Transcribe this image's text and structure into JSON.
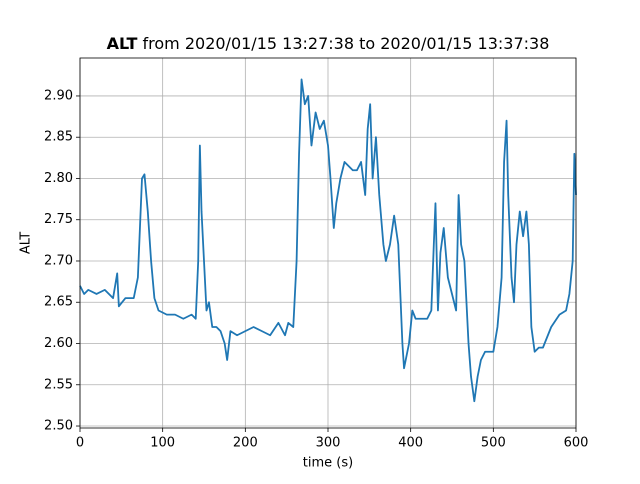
{
  "chart_data": {
    "type": "line",
    "title_bold": "ALT",
    "title": "from 2020/01/15 13:27:38 to 2020/01/15 13:37:38",
    "xlabel": "time (s)",
    "ylabel": "ALT",
    "xlim": [
      0,
      600
    ],
    "ylim": [
      2.4976,
      2.946
    ],
    "xticks": [
      0,
      100,
      200,
      300,
      400,
      500,
      600
    ],
    "yticks": [
      {
        "value": 2.5,
        "label": "2.50"
      },
      {
        "value": 2.55,
        "label": "2.55"
      },
      {
        "value": 2.6,
        "label": "2.60"
      },
      {
        "value": 2.65,
        "label": "2.65"
      },
      {
        "value": 2.7,
        "label": "2.70"
      },
      {
        "value": 2.75,
        "label": "2.75"
      },
      {
        "value": 2.8,
        "label": "2.80"
      },
      {
        "value": 2.85,
        "label": "2.85"
      },
      {
        "value": 2.9,
        "label": "2.90"
      }
    ],
    "grid": true,
    "series": [
      {
        "color": "#1f77b4",
        "x": [
          0,
          5,
          10,
          20,
          30,
          40,
          45,
          47,
          55,
          65,
          70,
          75,
          78,
          82,
          86,
          90,
          95,
          105,
          115,
          125,
          135,
          140,
          143,
          145,
          147,
          150,
          153,
          156,
          160,
          165,
          170,
          175,
          178,
          182,
          190,
          200,
          210,
          220,
          230,
          240,
          248,
          252,
          258,
          262,
          265,
          268,
          272,
          276,
          280,
          285,
          290,
          295,
          300,
          303,
          307,
          310,
          315,
          320,
          325,
          330,
          335,
          340,
          345,
          348,
          351,
          354,
          358,
          362,
          367,
          370,
          375,
          380,
          385,
          390,
          392,
          398,
          402,
          406,
          410,
          415,
          420,
          425,
          428,
          430,
          433,
          436,
          440,
          445,
          450,
          455,
          458,
          461,
          465,
          470,
          473,
          477,
          481,
          485,
          490,
          496,
          500,
          505,
          510,
          513,
          516,
          518,
          522,
          525,
          528,
          532,
          536,
          540,
          543,
          546,
          550,
          555,
          560,
          570,
          580,
          588,
          592,
          596,
          598,
          600
        ],
        "values": [
          2.67,
          2.66,
          2.665,
          2.66,
          2.665,
          2.655,
          2.685,
          2.645,
          2.655,
          2.655,
          2.68,
          2.8,
          2.805,
          2.76,
          2.7,
          2.655,
          2.64,
          2.635,
          2.635,
          2.63,
          2.635,
          2.63,
          2.7,
          2.84,
          2.76,
          2.7,
          2.64,
          2.65,
          2.62,
          2.62,
          2.615,
          2.6,
          2.58,
          2.615,
          2.61,
          2.615,
          2.62,
          2.615,
          2.61,
          2.625,
          2.61,
          2.625,
          2.62,
          2.7,
          2.83,
          2.92,
          2.89,
          2.9,
          2.84,
          2.88,
          2.86,
          2.87,
          2.84,
          2.8,
          2.74,
          2.77,
          2.8,
          2.82,
          2.815,
          2.81,
          2.81,
          2.82,
          2.78,
          2.86,
          2.89,
          2.8,
          2.85,
          2.78,
          2.72,
          2.7,
          2.72,
          2.755,
          2.72,
          2.6,
          2.57,
          2.6,
          2.64,
          2.63,
          2.63,
          2.63,
          2.63,
          2.64,
          2.72,
          2.77,
          2.64,
          2.71,
          2.74,
          2.68,
          2.66,
          2.64,
          2.78,
          2.72,
          2.7,
          2.6,
          2.56,
          2.53,
          2.56,
          2.58,
          2.59,
          2.59,
          2.59,
          2.62,
          2.68,
          2.82,
          2.87,
          2.78,
          2.68,
          2.65,
          2.72,
          2.76,
          2.73,
          2.76,
          2.72,
          2.62,
          2.59,
          2.595,
          2.595,
          2.62,
          2.635,
          2.64,
          2.66,
          2.7,
          2.83,
          2.78
        ]
      }
    ]
  }
}
